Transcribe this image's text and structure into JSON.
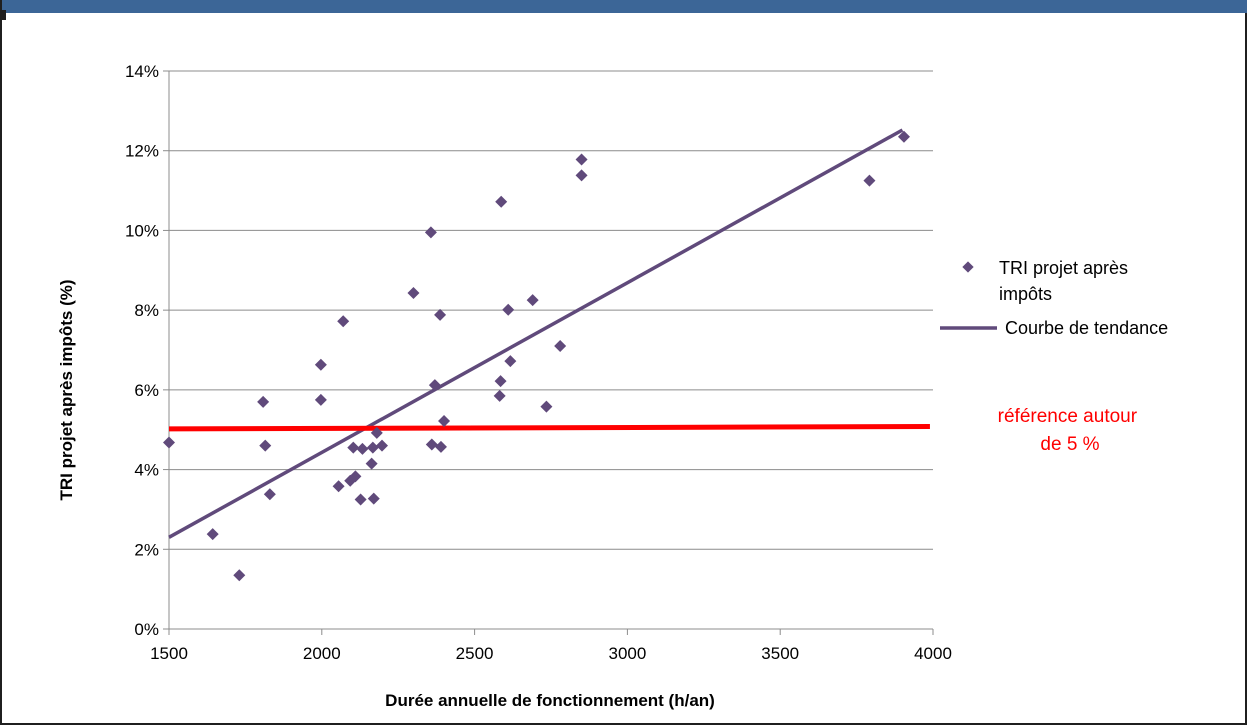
{
  "chart_data": {
    "type": "scatter",
    "title": "",
    "xlabel": "Durée annuelle de fonctionnement (h/an)",
    "ylabel": "TRI projet après impôts (%)",
    "xlim": [
      1500,
      4000
    ],
    "ylim": [
      0,
      14
    ],
    "x_ticks": [
      1500,
      2000,
      2500,
      3000,
      3500,
      4000
    ],
    "y_ticks": [
      0,
      2,
      4,
      6,
      8,
      10,
      12,
      14
    ],
    "y_tick_labels": [
      "0%",
      "2%",
      "4%",
      "6%",
      "8%",
      "10%",
      "12%",
      "14%"
    ],
    "grid": "horizontal",
    "legend_position": "right",
    "series": [
      {
        "name": "TRI projet après impôts",
        "kind": "scatter",
        "color": "#604a7b",
        "marker": "diamond",
        "points": [
          {
            "x": 1500,
            "y": 4.68
          },
          {
            "x": 1643,
            "y": 2.38
          },
          {
            "x": 1730,
            "y": 1.35
          },
          {
            "x": 1808,
            "y": 5.7
          },
          {
            "x": 1815,
            "y": 4.6
          },
          {
            "x": 1830,
            "y": 3.38
          },
          {
            "x": 1997,
            "y": 6.63
          },
          {
            "x": 1997,
            "y": 5.75
          },
          {
            "x": 2055,
            "y": 3.58
          },
          {
            "x": 2070,
            "y": 7.72
          },
          {
            "x": 2093,
            "y": 3.72
          },
          {
            "x": 2103,
            "y": 4.55
          },
          {
            "x": 2110,
            "y": 3.83
          },
          {
            "x": 2127,
            "y": 3.25
          },
          {
            "x": 2133,
            "y": 4.52
          },
          {
            "x": 2163,
            "y": 4.15
          },
          {
            "x": 2167,
            "y": 4.55
          },
          {
            "x": 2170,
            "y": 3.27
          },
          {
            "x": 2180,
            "y": 4.92
          },
          {
            "x": 2197,
            "y": 4.6
          },
          {
            "x": 2300,
            "y": 8.43
          },
          {
            "x": 2357,
            "y": 9.95
          },
          {
            "x": 2360,
            "y": 4.63
          },
          {
            "x": 2370,
            "y": 6.12
          },
          {
            "x": 2387,
            "y": 7.88
          },
          {
            "x": 2390,
            "y": 4.57
          },
          {
            "x": 2400,
            "y": 5.22
          },
          {
            "x": 2582,
            "y": 5.85
          },
          {
            "x": 2585,
            "y": 6.22
          },
          {
            "x": 2587,
            "y": 10.72
          },
          {
            "x": 2610,
            "y": 8.01
          },
          {
            "x": 2617,
            "y": 6.72
          },
          {
            "x": 2690,
            "y": 8.25
          },
          {
            "x": 2735,
            "y": 5.58
          },
          {
            "x": 2780,
            "y": 7.1
          },
          {
            "x": 2850,
            "y": 11.78
          },
          {
            "x": 2850,
            "y": 11.38
          },
          {
            "x": 3792,
            "y": 11.25
          },
          {
            "x": 3905,
            "y": 12.35
          }
        ]
      },
      {
        "name": "Courbe de tendance",
        "kind": "line",
        "color": "#604a7b",
        "points": [
          {
            "x": 1500,
            "y": 2.3
          },
          {
            "x": 3900,
            "y": 12.52
          }
        ]
      },
      {
        "name": "",
        "kind": "reference-line",
        "color": "#ff0000",
        "points": [
          {
            "x": 1500,
            "y": 5.02
          },
          {
            "x": 3990,
            "y": 5.08
          }
        ]
      }
    ],
    "annotations": [
      {
        "text_lines": [
          "référence autour",
          "de 5 %"
        ],
        "color": "#ff0000"
      }
    ]
  }
}
